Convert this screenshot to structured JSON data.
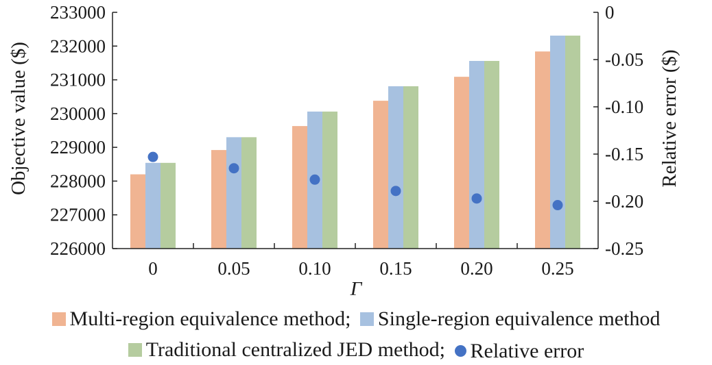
{
  "chart_data": {
    "type": "bar",
    "title": "",
    "xlabel": "Γ",
    "ylabel": "Objective value ($)",
    "y2label": "Relative error ($)",
    "categories": [
      "0",
      "0.05",
      "0.10",
      "0.15",
      "0.20",
      "0.25"
    ],
    "ylim": [
      226000,
      233000
    ],
    "yticks": [
      "226000",
      "227000",
      "228000",
      "229000",
      "230000",
      "231000",
      "232000",
      "233000"
    ],
    "y2lim": [
      -0.25,
      0
    ],
    "y2ticks": [
      "-0.25",
      "-0.20",
      "-0.15",
      "-0.10",
      "-0.05",
      "0"
    ],
    "grid": false,
    "legend_position": "bottom",
    "series": [
      {
        "name": "Multi-region equivalence method",
        "type": "bar",
        "axis": "left",
        "color": "#f0b492",
        "values": [
          228200,
          228920,
          229630,
          230380,
          231090,
          231840
        ]
      },
      {
        "name": "Single-region equivalence method",
        "type": "bar",
        "axis": "left",
        "color": "#a7c1e0",
        "values": [
          228540,
          229300,
          230060,
          230810,
          231560,
          232310
        ]
      },
      {
        "name": "Traditional centralized JED method",
        "type": "bar",
        "axis": "left",
        "color": "#b5cc9f",
        "values": [
          228540,
          229300,
          230060,
          230810,
          231560,
          232310
        ]
      },
      {
        "name": "Relative error",
        "type": "scatter",
        "axis": "right",
        "color": "#4472c4",
        "values": [
          -0.153,
          -0.165,
          -0.177,
          -0.189,
          -0.197,
          -0.204
        ]
      }
    ]
  },
  "legend": {
    "row1": [
      {
        "label": "Multi-region equivalence method;",
        "color": "#f0b492",
        "marker": "square"
      },
      {
        "label": "Single-region equivalence method",
        "color": "#a7c1e0",
        "marker": "square"
      }
    ],
    "row2": [
      {
        "label": "Traditional centralized JED method;",
        "color": "#b5cc9f",
        "marker": "square"
      },
      {
        "label": "Relative error",
        "color": "#4472c4",
        "marker": "circle"
      }
    ]
  }
}
